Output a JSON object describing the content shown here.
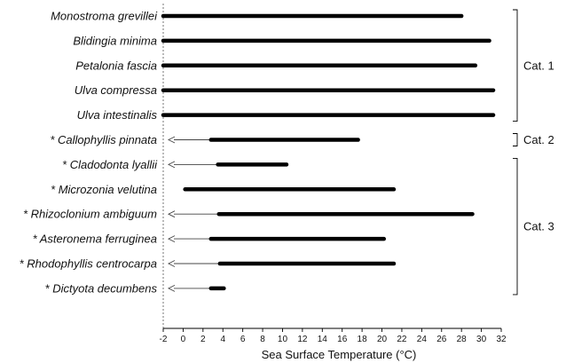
{
  "chart_data": {
    "type": "bar",
    "orientation": "horizontal-range",
    "xlabel": "Sea Surface Temperature (°C)",
    "xlim": [
      -2,
      32
    ],
    "xticks": [
      -2,
      0,
      2,
      4,
      6,
      8,
      10,
      12,
      14,
      16,
      18,
      20,
      22,
      24,
      26,
      28,
      30,
      32
    ],
    "reference_line_x": -2,
    "species": [
      {
        "label": "Monostroma grevillei",
        "start": -2,
        "end": 28,
        "arrow": false
      },
      {
        "label": "Blidingia minima",
        "start": -2,
        "end": 30.8,
        "arrow": false
      },
      {
        "label": "Petalonia fascia",
        "start": -2,
        "end": 29.4,
        "arrow": false
      },
      {
        "label": "Ulva compressa",
        "start": -2,
        "end": 31.2,
        "arrow": false
      },
      {
        "label": "Ulva intestinalis",
        "start": -2,
        "end": 31.2,
        "arrow": false
      },
      {
        "label": "* Callophyllis pinnata",
        "start": 2.8,
        "end": 17.6,
        "arrow": true
      },
      {
        "label": "* Cladodonta lyallii",
        "start": 3.5,
        "end": 10.4,
        "arrow": true
      },
      {
        "label": "* Microzonia velutina",
        "start": 0.2,
        "end": 21.2,
        "arrow": false
      },
      {
        "label": "* Rhizoclonium ambiguum",
        "start": 3.6,
        "end": 29.1,
        "arrow": true
      },
      {
        "label": "* Asteronema ferruginea",
        "start": 2.8,
        "end": 20.2,
        "arrow": true
      },
      {
        "label": "* Rhodophyllis centrocarpa",
        "start": 3.7,
        "end": 21.2,
        "arrow": true
      },
      {
        "label": "* Dictyota decumbens",
        "start": 2.8,
        "end": 4.1,
        "arrow": true
      }
    ],
    "categories": [
      {
        "label": "Cat. 1",
        "first": 0,
        "last": 4
      },
      {
        "label": "Cat. 2",
        "first": 5,
        "last": 5
      },
      {
        "label": "Cat. 3",
        "first": 6,
        "last": 11
      }
    ]
  }
}
